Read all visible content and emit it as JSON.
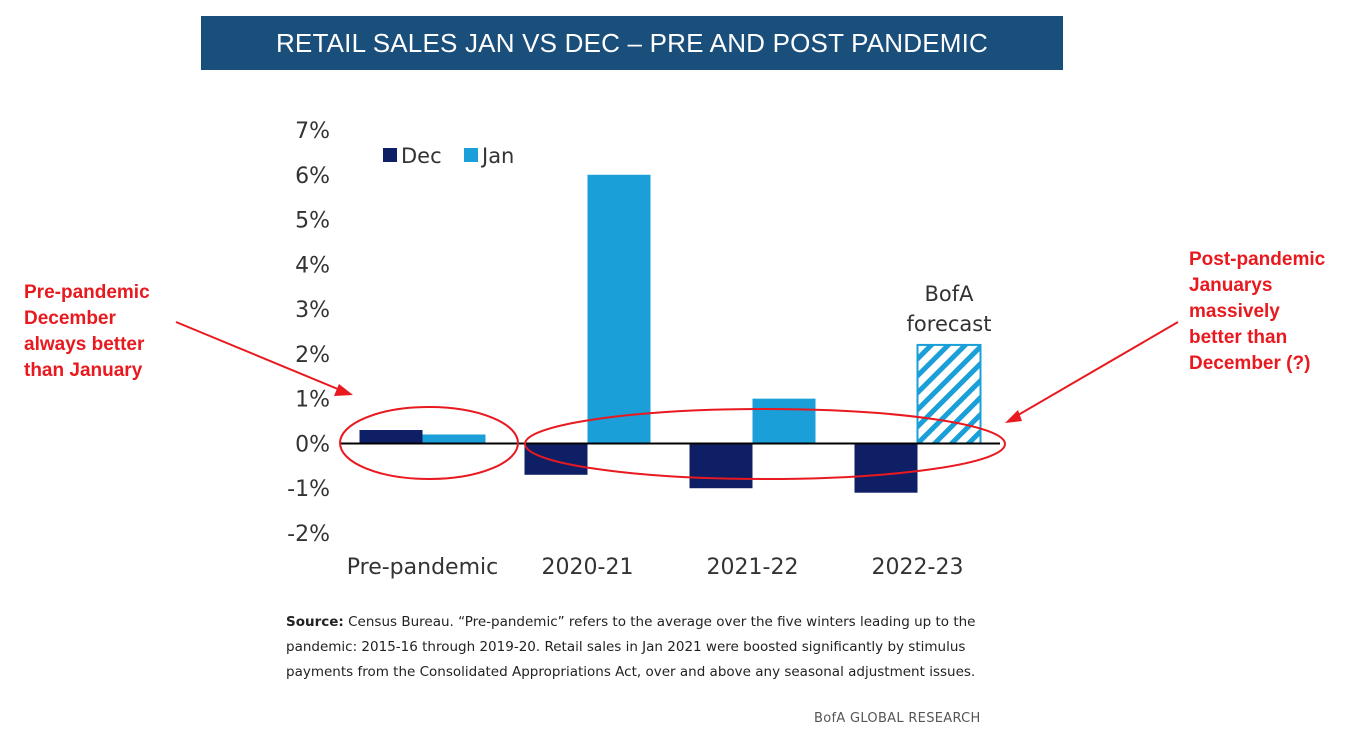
{
  "header": {
    "title": "RETAIL SALES JAN VS DEC – PRE AND POST PANDEMIC"
  },
  "chart_data": {
    "type": "bar",
    "categories": [
      "Pre-pandemic",
      "2020-21",
      "2021-22",
      "2022-23"
    ],
    "series": [
      {
        "name": "Dec",
        "color": "#0f1f66",
        "values": [
          0.3,
          -0.7,
          -1.0,
          -1.1
        ]
      },
      {
        "name": "Jan",
        "color": "#1a9fd8",
        "values": [
          0.2,
          6.0,
          1.0,
          2.2
        ]
      }
    ],
    "forecast": {
      "category": "2022-23",
      "series": "Jan",
      "label_line1": "BofA",
      "label_line2": "forecast",
      "pattern": "hatched"
    },
    "ylim": [
      -2,
      7
    ],
    "yticks": [
      "7%",
      "6%",
      "5%",
      "4%",
      "3%",
      "2%",
      "1%",
      "0%",
      "-1%",
      "-2%"
    ],
    "ytick_values": [
      7,
      6,
      5,
      4,
      3,
      2,
      1,
      0,
      -1,
      -2
    ],
    "legend_position": "top-left",
    "grid": false
  },
  "annotations": {
    "left": {
      "line1": "Pre-pandemic",
      "line2": "December",
      "line3": "always better",
      "line4": "than January",
      "color": "#e8191f"
    },
    "right": {
      "line1": "Post-pandemic",
      "line2": "Januarys",
      "line3": "massively",
      "line4": "better than",
      "line5": "December (?)",
      "color": "#e8191f"
    }
  },
  "source": {
    "label": "Source:",
    "text": "Census Bureau. “Pre-pandemic” refers to the average over the five winters leading up to the pandemic: 2015-16 through 2019-20. Retail sales in Jan 2021 were boosted significantly by stimulus payments from the Consolidated Appropriations Act, over and above any seasonal adjustment issues."
  },
  "credit": "BofA GLOBAL RESEARCH"
}
